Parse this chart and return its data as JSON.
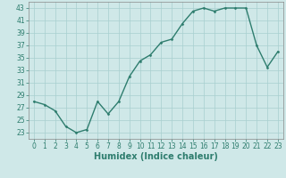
{
  "x": [
    0,
    1,
    2,
    3,
    4,
    5,
    6,
    7,
    8,
    9,
    10,
    11,
    12,
    13,
    14,
    15,
    16,
    17,
    18,
    19,
    20,
    21,
    22,
    23
  ],
  "y": [
    28,
    27.5,
    26.5,
    24,
    23,
    23.5,
    28,
    26,
    28,
    32,
    34.5,
    35.5,
    37.5,
    38,
    40.5,
    42.5,
    43,
    42.5,
    43,
    43,
    43,
    37,
    33.5,
    36
  ],
  "line_color": "#2e7d6e",
  "marker": "D",
  "marker_size": 1.5,
  "line_width": 1.0,
  "bg_color": "#cfe8e8",
  "grid_color": "#a8cfcf",
  "xlabel": "Humidex (Indice chaleur)",
  "xlim": [
    -0.5,
    23.5
  ],
  "ylim": [
    22,
    44
  ],
  "yticks": [
    23,
    25,
    27,
    29,
    31,
    33,
    35,
    37,
    39,
    41,
    43
  ],
  "xticks": [
    0,
    1,
    2,
    3,
    4,
    5,
    6,
    7,
    8,
    9,
    10,
    11,
    12,
    13,
    14,
    15,
    16,
    17,
    18,
    19,
    20,
    21,
    22,
    23
  ],
  "tick_fontsize": 5.5,
  "xlabel_fontsize": 7.0,
  "xlabel_fontweight": "bold"
}
